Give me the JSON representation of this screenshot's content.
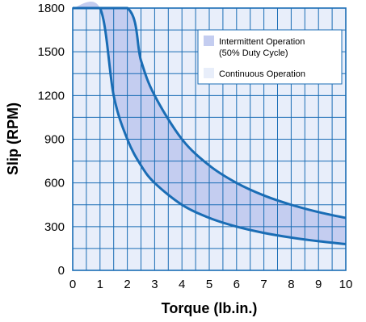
{
  "chart_data": {
    "type": "area",
    "xlabel": "Torque (lb.in.)",
    "ylabel": "Slip (RPM)",
    "xlim": [
      0,
      10
    ],
    "ylim": [
      0,
      1800
    ],
    "x_ticks": [
      "0",
      "1",
      "2",
      "3",
      "4",
      "5",
      "6",
      "7",
      "8",
      "9",
      "10"
    ],
    "y_ticks": [
      "0",
      "300",
      "600",
      "900",
      "1200",
      "1500",
      "1800"
    ],
    "grid": true,
    "minor_x_step": 0.5,
    "minor_y_step": 150,
    "legend_position": "top-right",
    "legend": [
      {
        "label_lines": [
          "Intermittent Operation",
          "(50% Duty Cycle)"
        ],
        "swatch": "#c4cdf0"
      },
      {
        "label_lines": [
          "Continuous Operation"
        ],
        "swatch": "#e8eefa"
      }
    ],
    "series": [
      {
        "role": "continuous",
        "x": [
          0,
          1,
          1.5,
          2,
          2.5,
          3,
          4,
          5,
          6,
          7,
          8,
          9,
          10
        ],
        "y": [
          1800,
          1800,
          1200,
          900,
          720,
          600,
          450,
          360,
          300,
          257,
          225,
          200,
          180
        ]
      },
      {
        "role": "intermittent",
        "x": [
          0,
          2,
          2.5,
          3,
          4,
          5,
          6,
          7,
          8,
          9,
          10
        ],
        "y": [
          1800,
          1800,
          1440,
          1200,
          900,
          720,
          600,
          514,
          450,
          400,
          360
        ]
      }
    ],
    "colors": {
      "curve": "#1a6db5",
      "grid": "#1a6db5",
      "frame": "#1a6db5",
      "background": "#e8eefa",
      "intermittent_fill": "#c4cdf0"
    }
  }
}
